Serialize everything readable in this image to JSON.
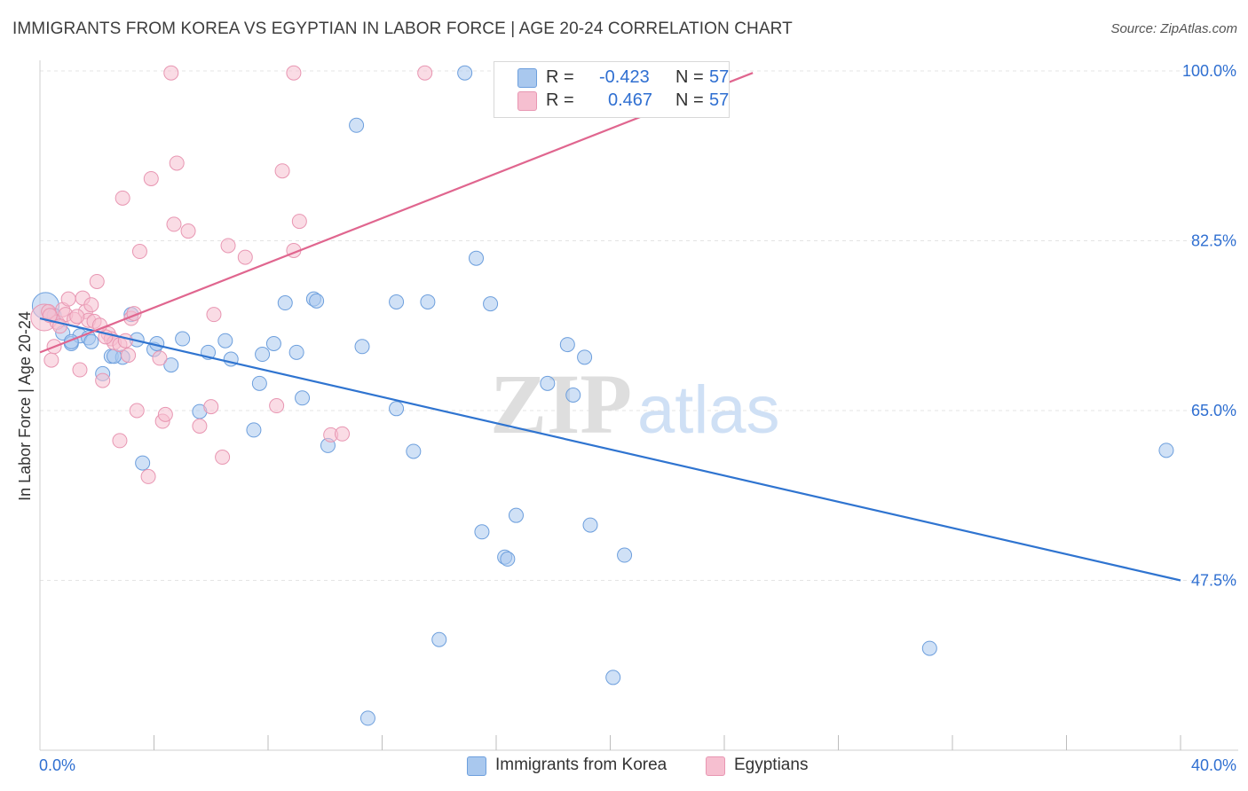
{
  "title": "IMMIGRANTS FROM KOREA VS EGYPTIAN IN LABOR FORCE | AGE 20-24 CORRELATION CHART",
  "source": "Source: ZipAtlas.com",
  "watermark": {
    "zip": "ZIP",
    "atlas": "atlas"
  },
  "legend": {
    "r_label": "R =",
    "n_label": "N =",
    "rows": [
      {
        "r": "-0.423",
        "n": "57"
      },
      {
        "r": "0.467",
        "n": "57"
      }
    ]
  },
  "colors": {
    "blue_fill": "#a9c8ee",
    "blue_stroke": "#6d9fdd",
    "blue_line": "#2f74d0",
    "pink_fill": "#f6bfd0",
    "pink_stroke": "#e896b2",
    "pink_line": "#e0668f",
    "value_text": "#2f6fd1",
    "grid": "#e4e4e4"
  },
  "chart_data": {
    "type": "scatter",
    "title": "IMMIGRANTS FROM KOREA VS EGYPTIAN IN LABOR FORCE | AGE 20-24 CORRELATION CHART",
    "xlabel": "",
    "ylabel": "In Labor Force | Age 20-24",
    "xlim": [
      0,
      40
    ],
    "ylim": [
      30,
      100
    ],
    "x_tick_labels": [
      "0.0%",
      "40.0%"
    ],
    "y_ticks": [
      47.5,
      65.0,
      82.5,
      100.0
    ],
    "y_tick_labels": [
      "47.5%",
      "65.0%",
      "82.5%",
      "100.0%"
    ],
    "grid": true,
    "legend_position": "bottom",
    "series": [
      {
        "name": "Immigrants from Korea",
        "color": "#a9c8ee",
        "r": -0.423,
        "n": 57,
        "trend": {
          "x": [
            0.0,
            40.0
          ],
          "y": [
            74.5,
            47.5
          ]
        },
        "points": [
          [
            0.2,
            75.8
          ],
          [
            0.5,
            74.8
          ],
          [
            0.8,
            73.0
          ],
          [
            1.1,
            71.9
          ],
          [
            1.4,
            72.7
          ],
          [
            1.7,
            72.5
          ],
          [
            1.8,
            72.1
          ],
          [
            2.2,
            68.8
          ],
          [
            2.5,
            70.6
          ],
          [
            2.9,
            70.5
          ],
          [
            3.2,
            74.9
          ],
          [
            3.4,
            72.3
          ],
          [
            3.6,
            59.6
          ],
          [
            4.0,
            71.3
          ],
          [
            4.1,
            71.9
          ],
          [
            4.6,
            69.7
          ],
          [
            5.0,
            72.4
          ],
          [
            6.5,
            72.2
          ],
          [
            5.6,
            64.9
          ],
          [
            5.9,
            71.0
          ],
          [
            6.7,
            70.3
          ],
          [
            7.5,
            63.0
          ],
          [
            7.7,
            67.8
          ],
          [
            7.8,
            70.8
          ],
          [
            8.2,
            71.9
          ],
          [
            8.6,
            76.1
          ],
          [
            9.0,
            71.0
          ],
          [
            9.2,
            66.3
          ],
          [
            9.6,
            76.5
          ],
          [
            9.7,
            76.3
          ],
          [
            10.1,
            61.4
          ],
          [
            11.3,
            71.6
          ],
          [
            11.1,
            94.4
          ],
          [
            12.5,
            65.2
          ],
          [
            12.5,
            76.2
          ],
          [
            13.1,
            60.8
          ],
          [
            13.6,
            76.2
          ],
          [
            14.0,
            41.4
          ],
          [
            14.9,
            99.8
          ],
          [
            15.3,
            80.7
          ],
          [
            15.5,
            52.5
          ],
          [
            15.8,
            76.0
          ],
          [
            16.3,
            49.9
          ],
          [
            16.4,
            49.7
          ],
          [
            16.7,
            54.2
          ],
          [
            17.8,
            67.8
          ],
          [
            18.5,
            71.8
          ],
          [
            18.7,
            66.6
          ],
          [
            19.1,
            70.5
          ],
          [
            19.3,
            53.2
          ],
          [
            20.1,
            37.5
          ],
          [
            20.5,
            50.1
          ],
          [
            11.5,
            33.3
          ],
          [
            31.2,
            40.5
          ],
          [
            39.5,
            60.9
          ],
          [
            1.1,
            72.1
          ],
          [
            2.6,
            70.6
          ]
        ]
      },
      {
        "name": "Egyptians",
        "color": "#f6bfd0",
        "r": 0.467,
        "n": 57,
        "trend": {
          "x": [
            0.0,
            25.0
          ],
          "y": [
            71.0,
            99.8
          ]
        },
        "points": [
          [
            0.15,
            74.6
          ],
          [
            0.3,
            75.2
          ],
          [
            0.4,
            70.2
          ],
          [
            0.5,
            71.6
          ],
          [
            0.6,
            74.1
          ],
          [
            0.8,
            75.4
          ],
          [
            0.9,
            74.9
          ],
          [
            1.0,
            76.5
          ],
          [
            1.2,
            74.4
          ],
          [
            1.4,
            69.2
          ],
          [
            1.5,
            76.6
          ],
          [
            1.6,
            75.2
          ],
          [
            1.7,
            74.3
          ],
          [
            1.8,
            75.9
          ],
          [
            2.0,
            78.3
          ],
          [
            2.2,
            68.1
          ],
          [
            2.4,
            72.9
          ],
          [
            2.5,
            72.4
          ],
          [
            2.6,
            72.0
          ],
          [
            2.8,
            71.8
          ],
          [
            2.8,
            61.9
          ],
          [
            2.9,
            86.9
          ],
          [
            3.1,
            70.7
          ],
          [
            3.2,
            74.5
          ],
          [
            3.3,
            75.0
          ],
          [
            3.4,
            65.0
          ],
          [
            3.5,
            81.4
          ],
          [
            3.8,
            58.2
          ],
          [
            3.9,
            88.9
          ],
          [
            4.2,
            70.4
          ],
          [
            4.3,
            63.9
          ],
          [
            4.4,
            64.6
          ],
          [
            4.6,
            99.8
          ],
          [
            4.7,
            84.2
          ],
          [
            4.8,
            90.5
          ],
          [
            5.2,
            83.5
          ],
          [
            5.6,
            63.4
          ],
          [
            6.0,
            65.4
          ],
          [
            6.1,
            74.9
          ],
          [
            6.4,
            60.2
          ],
          [
            6.6,
            82.0
          ],
          [
            7.2,
            80.8
          ],
          [
            8.3,
            65.5
          ],
          [
            8.5,
            89.7
          ],
          [
            8.9,
            81.5
          ],
          [
            9.1,
            84.5
          ],
          [
            8.9,
            99.8
          ],
          [
            10.2,
            62.5
          ],
          [
            10.6,
            62.6
          ],
          [
            13.5,
            99.8
          ],
          [
            0.35,
            74.8
          ],
          [
            1.9,
            74.2
          ],
          [
            2.3,
            72.6
          ],
          [
            1.3,
            74.7
          ],
          [
            2.1,
            73.8
          ],
          [
            0.7,
            73.7
          ],
          [
            3.0,
            72.2
          ]
        ]
      }
    ]
  },
  "bottom_legend": [
    {
      "label": "Immigrants from Korea"
    },
    {
      "label": "Egyptians"
    }
  ]
}
